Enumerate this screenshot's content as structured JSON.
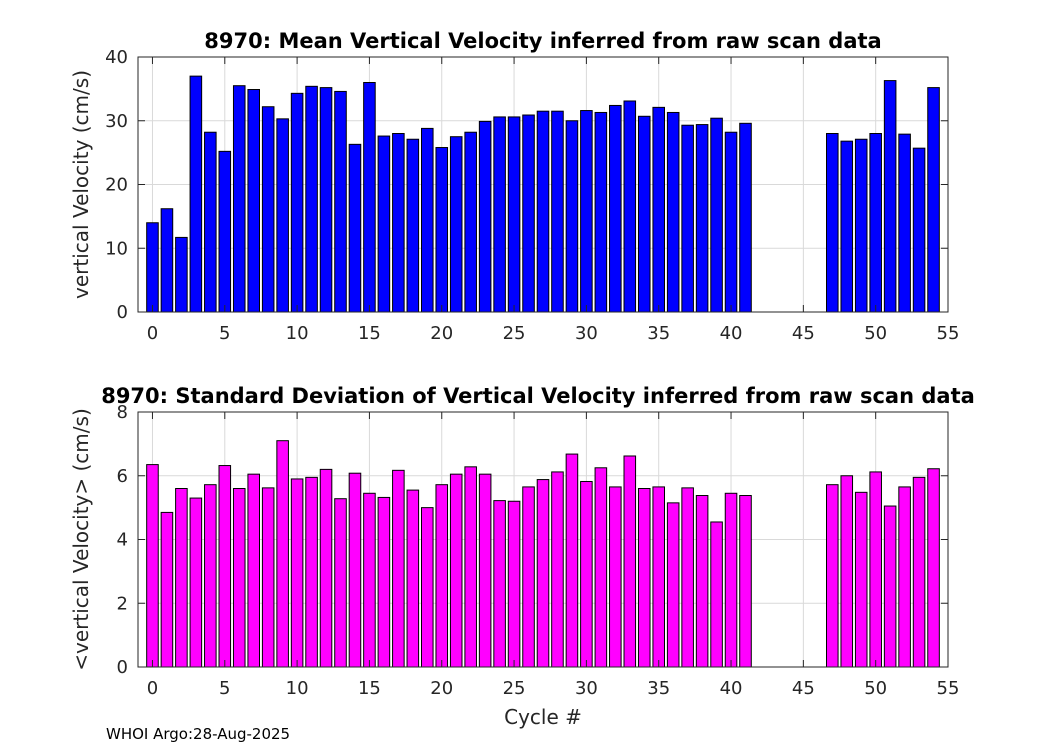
{
  "footer": "WHOI Argo:28-Aug-2025",
  "chart_data": [
    {
      "type": "bar",
      "title": "8970: Mean Vertical Velocity inferred from raw scan data",
      "xlabel": "",
      "ylabel": "vertical Velocity (cm/s)",
      "xlim": [
        -1,
        55
      ],
      "ylim": [
        0,
        40
      ],
      "xticks": [
        0,
        5,
        10,
        15,
        20,
        25,
        30,
        35,
        40,
        45,
        50,
        55
      ],
      "yticks": [
        0,
        10,
        20,
        30,
        40
      ],
      "color": "#0000ff",
      "grid": true,
      "x": [
        0,
        1,
        2,
        3,
        4,
        5,
        6,
        7,
        8,
        9,
        10,
        11,
        12,
        13,
        14,
        15,
        16,
        17,
        18,
        19,
        20,
        21,
        22,
        23,
        24,
        25,
        26,
        27,
        28,
        29,
        30,
        31,
        32,
        33,
        34,
        35,
        36,
        37,
        38,
        39,
        40,
        41,
        47,
        48,
        49,
        50,
        51,
        52,
        53,
        54
      ],
      "values": [
        14.0,
        16.2,
        11.7,
        37.0,
        28.2,
        25.2,
        35.5,
        34.9,
        32.2,
        30.3,
        34.3,
        35.4,
        35.2,
        34.6,
        26.3,
        36.0,
        27.6,
        28.0,
        27.1,
        28.8,
        25.8,
        27.5,
        28.2,
        29.9,
        30.6,
        30.6,
        30.9,
        31.5,
        31.5,
        30.0,
        31.6,
        31.3,
        32.4,
        33.1,
        30.7,
        32.1,
        31.3,
        29.3,
        29.4,
        30.4,
        28.2,
        29.6,
        28.0,
        26.8,
        27.1,
        28.0,
        36.3,
        27.9,
        25.7,
        35.2
      ]
    },
    {
      "type": "bar",
      "title": "8970: Standard Deviation of Vertical Velocity inferred from raw scan data",
      "xlabel": "Cycle #",
      "ylabel": "<vertical Velocity> (cm/s)",
      "xlim": [
        -1,
        55
      ],
      "ylim": [
        0,
        8
      ],
      "xticks": [
        0,
        5,
        10,
        15,
        20,
        25,
        30,
        35,
        40,
        45,
        50,
        55
      ],
      "yticks": [
        0,
        2,
        4,
        6,
        8
      ],
      "color": "#ff00ff",
      "grid": true,
      "x": [
        0,
        1,
        2,
        3,
        4,
        5,
        6,
        7,
        8,
        9,
        10,
        11,
        12,
        13,
        14,
        15,
        16,
        17,
        18,
        19,
        20,
        21,
        22,
        23,
        24,
        25,
        26,
        27,
        28,
        29,
        30,
        31,
        32,
        33,
        34,
        35,
        36,
        37,
        38,
        39,
        40,
        41,
        47,
        48,
        49,
        50,
        51,
        52,
        53,
        54
      ],
      "values": [
        6.35,
        4.85,
        5.6,
        5.3,
        5.72,
        6.32,
        5.6,
        6.05,
        5.62,
        7.1,
        5.9,
        5.95,
        6.2,
        5.28,
        6.08,
        5.45,
        5.32,
        6.17,
        5.55,
        5.0,
        5.72,
        6.05,
        6.28,
        6.05,
        5.22,
        5.2,
        5.65,
        5.88,
        6.12,
        6.68,
        5.82,
        6.25,
        5.65,
        6.62,
        5.6,
        5.65,
        5.15,
        5.62,
        5.38,
        4.55,
        5.45,
        5.38,
        5.72,
        6.0,
        5.48,
        6.12,
        5.05,
        5.65,
        5.95,
        6.22
      ]
    }
  ]
}
